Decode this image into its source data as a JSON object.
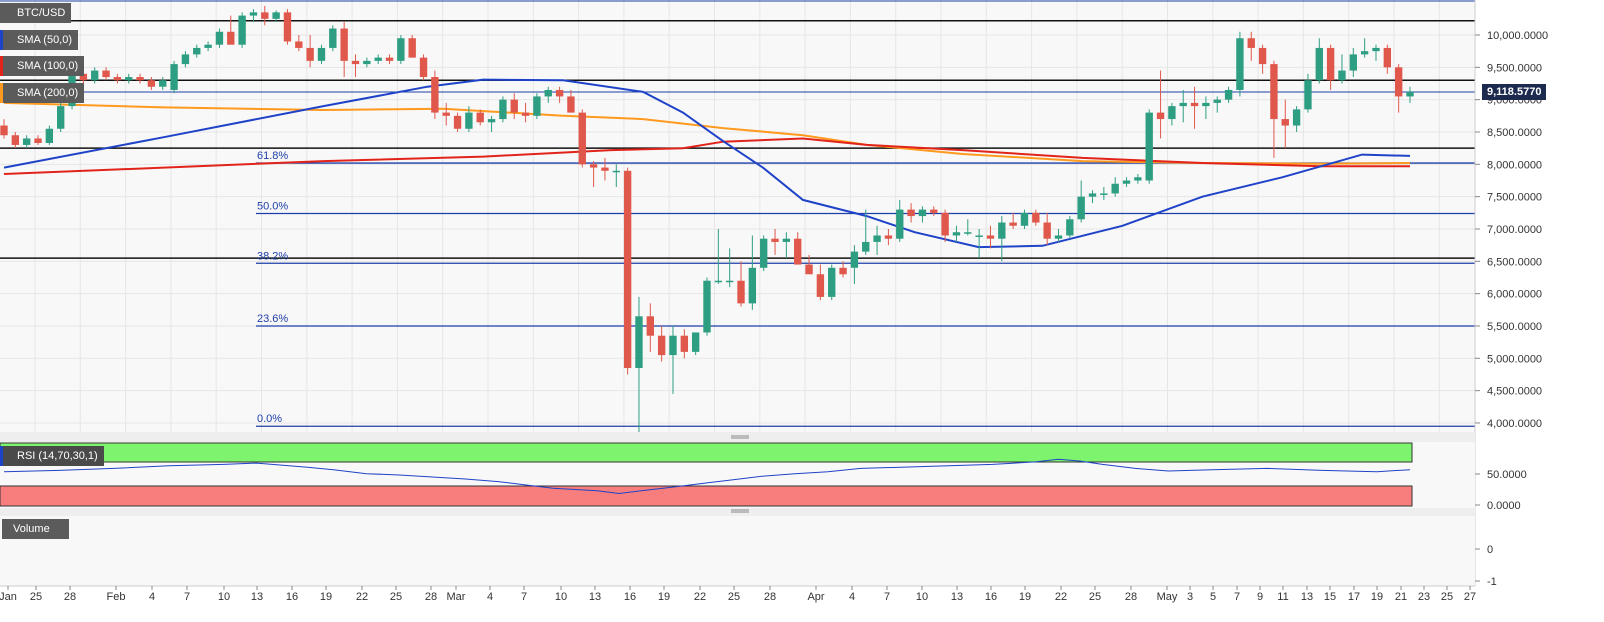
{
  "legend": {
    "symbol": "BTC/USD",
    "sma50": "SMA (50,0)",
    "sma100": "SMA (100,0)",
    "sma200": "SMA (200,0)",
    "rsi": "RSI (14,70,30,1)",
    "volume": "Volume"
  },
  "price_tag": "9,118.5770",
  "colors": {
    "bull": "#2e9e82",
    "bear": "#e0584b",
    "sma50": "#1f43c8",
    "sma100": "#e2231a",
    "sma200": "#ff9a1f",
    "fib": "#1d3fa8",
    "rsi_overbought": "#7ef36e",
    "rsi_oversold": "#f87d7d"
  },
  "fib_levels": [
    {
      "label": "0.0%",
      "value": 3950
    },
    {
      "label": "23.6%",
      "value": 5500
    },
    {
      "label": "38.2%",
      "value": 6470
    },
    {
      "label": "50.0%",
      "value": 7240
    },
    {
      "label": "61.8%",
      "value": 8020
    }
  ],
  "y_ticks": [
    "10,000.0000",
    "9,500.0000",
    "9,000.0000",
    "8,500.0000",
    "8,000.0000",
    "7,500.0000",
    "7,000.0000",
    "6,500.0000",
    "6,000.0000",
    "5,500.0000",
    "5,000.0000",
    "4,500.0000",
    "4,000.0000"
  ],
  "rsi_ticks": [
    "50.0000",
    "0.0000"
  ],
  "volume_ticks": [
    "0",
    "-1"
  ],
  "x_ticks": [
    "Jan",
    "25",
    "28",
    "Feb",
    "4",
    "7",
    "10",
    "13",
    "16",
    "19",
    "22",
    "25",
    "28",
    "Mar",
    "4",
    "7",
    "10",
    "13",
    "16",
    "19",
    "22",
    "25",
    "28",
    "Apr",
    "4",
    "7",
    "10",
    "13",
    "16",
    "19",
    "22",
    "25",
    "28",
    "May",
    "3",
    "5",
    "7",
    "9",
    "11",
    "13",
    "15",
    "17",
    "19",
    "21",
    "23",
    "25",
    "27"
  ],
  "chart_data": {
    "type": "candlestick",
    "title": "BTC/USD",
    "ylim": [
      3900,
      10450
    ],
    "horizontal_lines": [
      10220,
      9300,
      8250,
      6550
    ],
    "current_price": 9118.577,
    "candles": [
      {
        "o": 8600,
        "h": 8700,
        "l": 8400,
        "c": 8450
      },
      {
        "o": 8450,
        "h": 8500,
        "l": 8250,
        "c": 8300
      },
      {
        "o": 8300,
        "h": 8450,
        "l": 8250,
        "c": 8400
      },
      {
        "o": 8400,
        "h": 8450,
        "l": 8300,
        "c": 8330
      },
      {
        "o": 8330,
        "h": 8600,
        "l": 8300,
        "c": 8550
      },
      {
        "o": 8550,
        "h": 8950,
        "l": 8500,
        "c": 8900
      },
      {
        "o": 8900,
        "h": 9450,
        "l": 8850,
        "c": 9400
      },
      {
        "o": 9400,
        "h": 9450,
        "l": 9250,
        "c": 9300
      },
      {
        "o": 9300,
        "h": 9500,
        "l": 9250,
        "c": 9450
      },
      {
        "o": 9450,
        "h": 9500,
        "l": 9300,
        "c": 9350
      },
      {
        "o": 9350,
        "h": 9400,
        "l": 9250,
        "c": 9300
      },
      {
        "o": 9300,
        "h": 9400,
        "l": 9250,
        "c": 9350
      },
      {
        "o": 9350,
        "h": 9400,
        "l": 9250,
        "c": 9300
      },
      {
        "o": 9300,
        "h": 9350,
        "l": 9150,
        "c": 9200
      },
      {
        "o": 9200,
        "h": 9350,
        "l": 9150,
        "c": 9300
      },
      {
        "o": 9150,
        "h": 9600,
        "l": 9100,
        "c": 9550
      },
      {
        "o": 9550,
        "h": 9750,
        "l": 9500,
        "c": 9700
      },
      {
        "o": 9700,
        "h": 9850,
        "l": 9650,
        "c": 9800
      },
      {
        "o": 9800,
        "h": 9900,
        "l": 9750,
        "c": 9850
      },
      {
        "o": 9850,
        "h": 10100,
        "l": 9800,
        "c": 10050
      },
      {
        "o": 10050,
        "h": 10300,
        "l": 9850,
        "c": 9850
      },
      {
        "o": 9850,
        "h": 10350,
        "l": 9800,
        "c": 10300
      },
      {
        "o": 10300,
        "h": 10400,
        "l": 10200,
        "c": 10350
      },
      {
        "o": 10350,
        "h": 10450,
        "l": 10150,
        "c": 10250
      },
      {
        "o": 10250,
        "h": 10380,
        "l": 10200,
        "c": 10350
      },
      {
        "o": 10350,
        "h": 10400,
        "l": 9850,
        "c": 9900
      },
      {
        "o": 9900,
        "h": 10000,
        "l": 9750,
        "c": 9800
      },
      {
        "o": 9800,
        "h": 10000,
        "l": 9500,
        "c": 9600
      },
      {
        "o": 9600,
        "h": 9850,
        "l": 9550,
        "c": 9800
      },
      {
        "o": 9800,
        "h": 10150,
        "l": 9750,
        "c": 10100
      },
      {
        "o": 10100,
        "h": 10200,
        "l": 9350,
        "c": 9600
      },
      {
        "o": 9600,
        "h": 9700,
        "l": 9350,
        "c": 9550
      },
      {
        "o": 9550,
        "h": 9650,
        "l": 9500,
        "c": 9600
      },
      {
        "o": 9600,
        "h": 9700,
        "l": 9550,
        "c": 9650
      },
      {
        "o": 9650,
        "h": 9700,
        "l": 9550,
        "c": 9600
      },
      {
        "o": 9600,
        "h": 10000,
        "l": 9550,
        "c": 9950
      },
      {
        "o": 9950,
        "h": 10000,
        "l": 9650,
        "c": 9650
      },
      {
        "o": 9650,
        "h": 9700,
        "l": 9300,
        "c": 9350
      },
      {
        "o": 9350,
        "h": 9450,
        "l": 8700,
        "c": 8800
      },
      {
        "o": 8800,
        "h": 8950,
        "l": 8600,
        "c": 8750
      },
      {
        "o": 8750,
        "h": 8800,
        "l": 8500,
        "c": 8550
      },
      {
        "o": 8550,
        "h": 8900,
        "l": 8500,
        "c": 8800
      },
      {
        "o": 8800,
        "h": 8850,
        "l": 8600,
        "c": 8650
      },
      {
        "o": 8650,
        "h": 8750,
        "l": 8500,
        "c": 8700
      },
      {
        "o": 8700,
        "h": 9050,
        "l": 8650,
        "c": 9000
      },
      {
        "o": 9000,
        "h": 9100,
        "l": 8700,
        "c": 8800
      },
      {
        "o": 8800,
        "h": 8950,
        "l": 8650,
        "c": 8750
      },
      {
        "o": 8750,
        "h": 9100,
        "l": 8700,
        "c": 9050
      },
      {
        "o": 9050,
        "h": 9200,
        "l": 8950,
        "c": 9150
      },
      {
        "o": 9150,
        "h": 9200,
        "l": 8950,
        "c": 9050
      },
      {
        "o": 9050,
        "h": 9150,
        "l": 8800,
        "c": 8800
      },
      {
        "o": 8800,
        "h": 8850,
        "l": 7950,
        "c": 8000
      },
      {
        "o": 8000,
        "h": 8050,
        "l": 7650,
        "c": 7950
      },
      {
        "o": 7950,
        "h": 8100,
        "l": 7750,
        "c": 7900
      },
      {
        "o": 7900,
        "h": 8000,
        "l": 7650,
        "c": 7900
      },
      {
        "o": 7900,
        "h": 7950,
        "l": 4750,
        "c": 4850
      },
      {
        "o": 4850,
        "h": 5950,
        "l": 3850,
        "c": 5650
      },
      {
        "o": 5650,
        "h": 5850,
        "l": 5100,
        "c": 5350
      },
      {
        "o": 5350,
        "h": 5500,
        "l": 4950,
        "c": 5050
      },
      {
        "o": 5050,
        "h": 5500,
        "l": 4450,
        "c": 5350
      },
      {
        "o": 5350,
        "h": 5450,
        "l": 5000,
        "c": 5100
      },
      {
        "o": 5100,
        "h": 5400,
        "l": 5050,
        "c": 5400
      },
      {
        "o": 5400,
        "h": 6250,
        "l": 5350,
        "c": 6200
      },
      {
        "o": 6200,
        "h": 7000,
        "l": 6150,
        "c": 6200
      },
      {
        "o": 6200,
        "h": 6700,
        "l": 6100,
        "c": 6200
      },
      {
        "o": 6200,
        "h": 6500,
        "l": 5800,
        "c": 5850
      },
      {
        "o": 5850,
        "h": 6900,
        "l": 5750,
        "c": 6400
      },
      {
        "o": 6400,
        "h": 6900,
        "l": 6350,
        "c": 6850
      },
      {
        "o": 6850,
        "h": 7000,
        "l": 6600,
        "c": 6800
      },
      {
        "o": 6800,
        "h": 6950,
        "l": 6550,
        "c": 6850
      },
      {
        "o": 6850,
        "h": 6950,
        "l": 6450,
        "c": 6450
      },
      {
        "o": 6450,
        "h": 6600,
        "l": 6350,
        "c": 6300
      },
      {
        "o": 6300,
        "h": 6450,
        "l": 5900,
        "c": 5950
      },
      {
        "o": 5950,
        "h": 6450,
        "l": 5900,
        "c": 6400
      },
      {
        "o": 6400,
        "h": 6500,
        "l": 6250,
        "c": 6300
      },
      {
        "o": 6400,
        "h": 6750,
        "l": 6150,
        "c": 6650
      },
      {
        "o": 6650,
        "h": 7300,
        "l": 6600,
        "c": 6800
      },
      {
        "o": 6800,
        "h": 7050,
        "l": 6600,
        "c": 6900
      },
      {
        "o": 6900,
        "h": 7000,
        "l": 6750,
        "c": 6850
      },
      {
        "o": 6850,
        "h": 7450,
        "l": 6800,
        "c": 7300
      },
      {
        "o": 7300,
        "h": 7400,
        "l": 7100,
        "c": 7200
      },
      {
        "o": 7200,
        "h": 7350,
        "l": 7100,
        "c": 7300
      },
      {
        "o": 7300,
        "h": 7350,
        "l": 7200,
        "c": 7250
      },
      {
        "o": 7250,
        "h": 7300,
        "l": 6800,
        "c": 6900
      },
      {
        "o": 6900,
        "h": 7050,
        "l": 6800,
        "c": 6950
      },
      {
        "o": 6950,
        "h": 7150,
        "l": 6900,
        "c": 6950
      },
      {
        "o": 6900,
        "h": 7000,
        "l": 6550,
        "c": 6900
      },
      {
        "o": 6900,
        "h": 7050,
        "l": 6700,
        "c": 6850
      },
      {
        "o": 6850,
        "h": 7200,
        "l": 6500,
        "c": 7100
      },
      {
        "o": 7100,
        "h": 7250,
        "l": 7000,
        "c": 7050
      },
      {
        "o": 7050,
        "h": 7300,
        "l": 7000,
        "c": 7250
      },
      {
        "o": 7250,
        "h": 7300,
        "l": 7050,
        "c": 7100
      },
      {
        "o": 7100,
        "h": 7250,
        "l": 6750,
        "c": 6850
      },
      {
        "o": 6850,
        "h": 7000,
        "l": 6800,
        "c": 6900
      },
      {
        "o": 6900,
        "h": 7200,
        "l": 6850,
        "c": 7150
      },
      {
        "o": 7150,
        "h": 7750,
        "l": 7100,
        "c": 7500
      },
      {
        "o": 7500,
        "h": 7600,
        "l": 7400,
        "c": 7550
      },
      {
        "o": 7550,
        "h": 7650,
        "l": 7450,
        "c": 7550
      },
      {
        "o": 7550,
        "h": 7800,
        "l": 7500,
        "c": 7700
      },
      {
        "o": 7700,
        "h": 7800,
        "l": 7650,
        "c": 7750
      },
      {
        "o": 7750,
        "h": 7850,
        "l": 7700,
        "c": 7800
      },
      {
        "o": 7750,
        "h": 8850,
        "l": 7700,
        "c": 8800
      },
      {
        "o": 8800,
        "h": 9450,
        "l": 8400,
        "c": 8700
      },
      {
        "o": 8700,
        "h": 8950,
        "l": 8600,
        "c": 8900
      },
      {
        "o": 8900,
        "h": 9150,
        "l": 8650,
        "c": 8950
      },
      {
        "o": 8950,
        "h": 9200,
        "l": 8550,
        "c": 8900
      },
      {
        "o": 8900,
        "h": 9050,
        "l": 8700,
        "c": 8950
      },
      {
        "o": 8950,
        "h": 9050,
        "l": 8800,
        "c": 9000
      },
      {
        "o": 9000,
        "h": 9200,
        "l": 8950,
        "c": 9150
      },
      {
        "o": 9150,
        "h": 10050,
        "l": 9050,
        "c": 9950
      },
      {
        "o": 9950,
        "h": 10050,
        "l": 9600,
        "c": 9800
      },
      {
        "o": 9800,
        "h": 9850,
        "l": 9400,
        "c": 9550
      },
      {
        "o": 9550,
        "h": 9600,
        "l": 8100,
        "c": 8700
      },
      {
        "o": 8700,
        "h": 9000,
        "l": 8250,
        "c": 8600
      },
      {
        "o": 8600,
        "h": 8900,
        "l": 8500,
        "c": 8850
      },
      {
        "o": 8850,
        "h": 9400,
        "l": 8800,
        "c": 9300
      },
      {
        "o": 9300,
        "h": 9950,
        "l": 9250,
        "c": 9800
      },
      {
        "o": 9800,
        "h": 9850,
        "l": 9150,
        "c": 9300
      },
      {
        "o": 9300,
        "h": 9700,
        "l": 9250,
        "c": 9450
      },
      {
        "o": 9450,
        "h": 9800,
        "l": 9350,
        "c": 9700
      },
      {
        "o": 9700,
        "h": 9950,
        "l": 9650,
        "c": 9750
      },
      {
        "o": 9750,
        "h": 9850,
        "l": 9600,
        "c": 9800
      },
      {
        "o": 9800,
        "h": 9850,
        "l": 9400,
        "c": 9500
      },
      {
        "o": 9500,
        "h": 9550,
        "l": 8800,
        "c": 9050
      },
      {
        "o": 9050,
        "h": 9200,
        "l": 8950,
        "c": 9120
      }
    ],
    "sma50": [
      [
        0,
        7950
      ],
      [
        20,
        8420
      ],
      [
        40,
        8900
      ],
      [
        53,
        9200
      ],
      [
        60,
        9310
      ],
      [
        70,
        9300
      ],
      [
        80,
        9120
      ],
      [
        85,
        8800
      ],
      [
        90,
        8360
      ],
      [
        95,
        7950
      ],
      [
        100,
        7450
      ],
      [
        108,
        7200
      ],
      [
        114,
        6950
      ],
      [
        122,
        6720
      ],
      [
        130,
        6740
      ],
      [
        140,
        7050
      ],
      [
        150,
        7500
      ],
      [
        160,
        7800
      ],
      [
        170,
        8150
      ],
      [
        176,
        8130
      ]
    ],
    "sma100": [
      [
        0,
        7850
      ],
      [
        20,
        7950
      ],
      [
        40,
        8050
      ],
      [
        60,
        8120
      ],
      [
        76,
        8220
      ],
      [
        85,
        8250
      ],
      [
        90,
        8350
      ],
      [
        100,
        8400
      ],
      [
        108,
        8300
      ],
      [
        120,
        8220
      ],
      [
        135,
        8100
      ],
      [
        150,
        8020
      ],
      [
        165,
        7970
      ],
      [
        176,
        7970
      ]
    ],
    "sma200": [
      [
        0,
        8950
      ],
      [
        20,
        8880
      ],
      [
        40,
        8840
      ],
      [
        55,
        8860
      ],
      [
        70,
        8750
      ],
      [
        80,
        8700
      ],
      [
        90,
        8560
      ],
      [
        100,
        8450
      ],
      [
        108,
        8300
      ],
      [
        120,
        8160
      ],
      [
        135,
        8050
      ],
      [
        150,
        8020
      ],
      [
        165,
        8010
      ],
      [
        176,
        8020
      ]
    ],
    "rsi_series": [
      [
        0,
        55
      ],
      [
        10,
        57
      ],
      [
        20,
        60
      ],
      [
        30,
        64
      ],
      [
        40,
        66
      ],
      [
        46,
        68
      ],
      [
        55,
        62
      ],
      [
        60,
        58
      ],
      [
        66,
        52
      ],
      [
        72,
        50
      ],
      [
        78,
        47
      ],
      [
        84,
        44
      ],
      [
        90,
        40
      ],
      [
        96,
        34
      ],
      [
        100,
        30
      ],
      [
        104,
        28
      ],
      [
        108,
        26
      ],
      [
        112,
        22
      ],
      [
        116,
        26
      ],
      [
        120,
        30
      ],
      [
        124,
        34
      ],
      [
        128,
        38
      ],
      [
        132,
        42
      ],
      [
        138,
        48
      ],
      [
        144,
        52
      ],
      [
        150,
        55
      ],
      [
        156,
        60
      ],
      [
        164,
        62
      ],
      [
        172,
        64
      ],
      [
        180,
        66
      ],
      [
        188,
        70
      ],
      [
        192,
        74
      ],
      [
        196,
        71
      ],
      [
        200,
        66
      ],
      [
        206,
        60
      ],
      [
        212,
        56
      ],
      [
        220,
        58
      ],
      [
        230,
        60
      ],
      [
        240,
        57
      ],
      [
        250,
        55
      ],
      [
        256,
        58
      ]
    ],
    "rsi_ylim": [
      0,
      100
    ]
  }
}
